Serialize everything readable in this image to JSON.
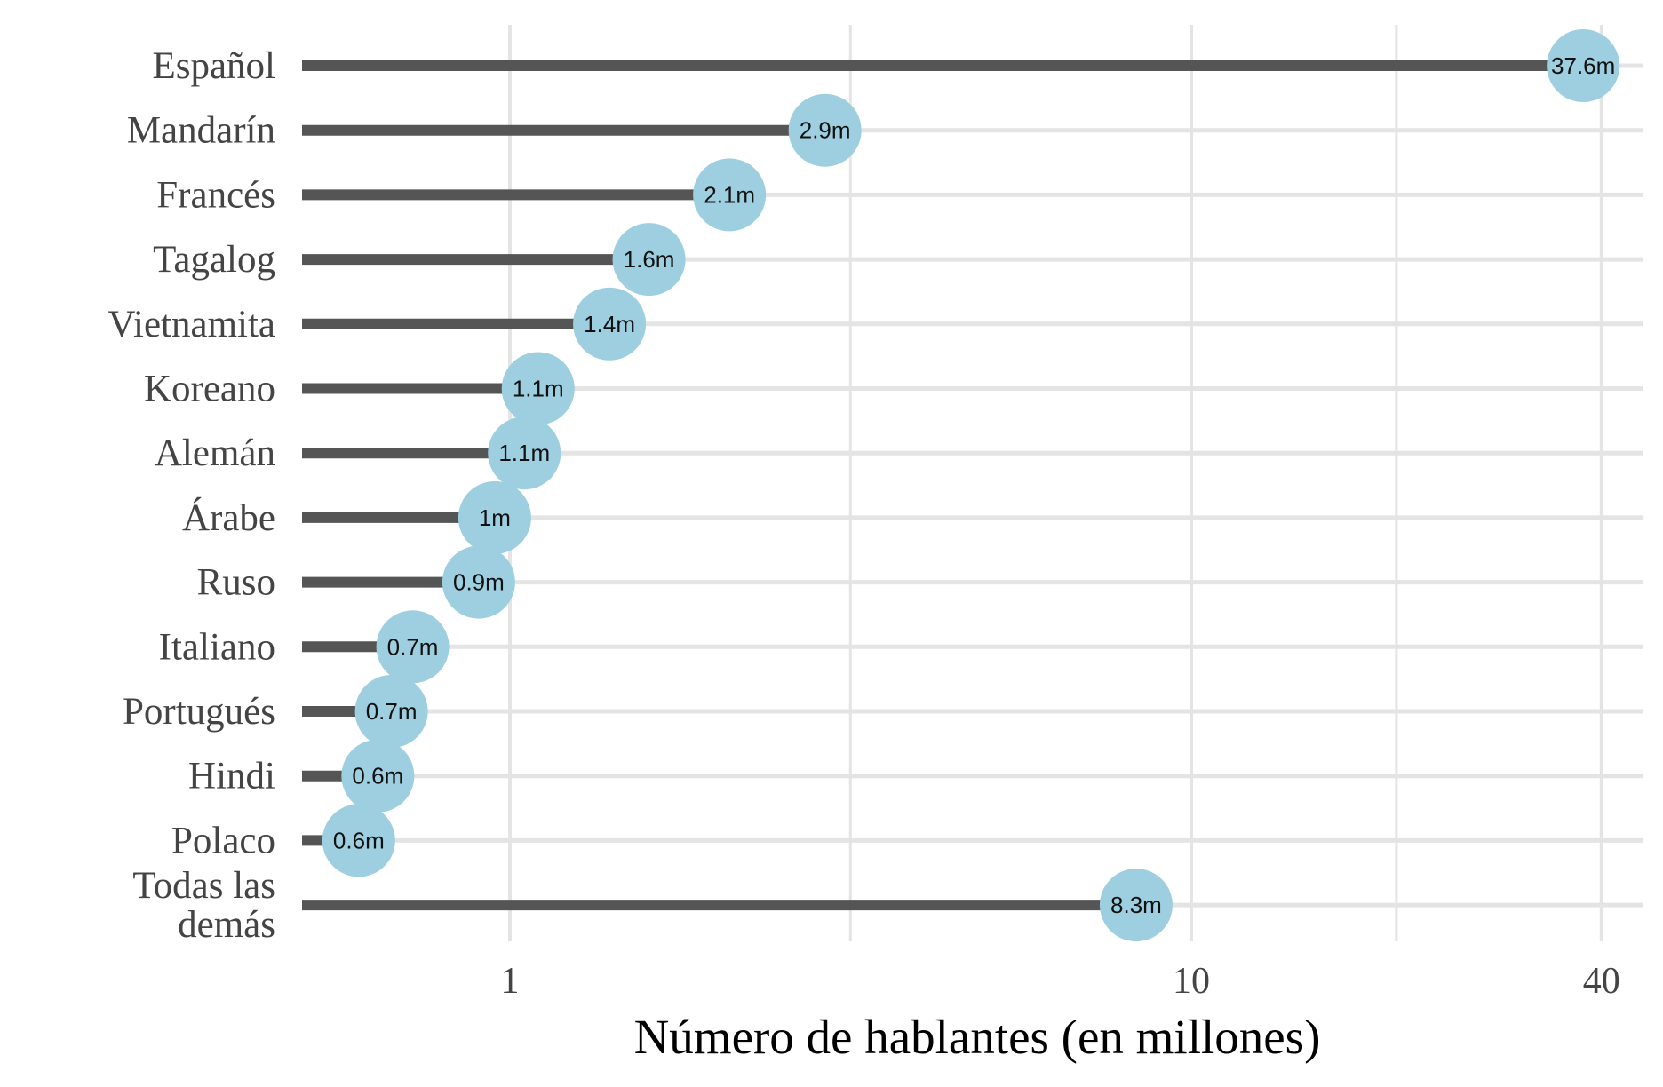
{
  "chart_data": {
    "type": "lollipop",
    "orientation": "horizontal",
    "x_scale": "log",
    "xlabel": "Número de hablantes (en millones)",
    "xlim": [
      0.3,
      52
    ],
    "x_ticks": [
      {
        "value": 1,
        "label": "1"
      },
      {
        "value": 10,
        "label": "10"
      },
      {
        "value": 40,
        "label": "40"
      }
    ],
    "minor_gridlines": [
      3.16,
      20
    ],
    "grid": true,
    "colors": {
      "stem": "#555555",
      "dot": "#9ecfe0",
      "grid": "#e4e4e4"
    },
    "categories": [
      {
        "label": [
          "Español"
        ],
        "value": 37.6,
        "data_label": "37.6m"
      },
      {
        "label": [
          "Mandarín"
        ],
        "value": 2.9,
        "data_label": "2.9m"
      },
      {
        "label": [
          "Francés"
        ],
        "value": 2.1,
        "data_label": "2.1m"
      },
      {
        "label": [
          "Tagalog"
        ],
        "value": 1.6,
        "data_label": "1.6m"
      },
      {
        "label": [
          "Vietnamita"
        ],
        "value": 1.4,
        "data_label": "1.4m"
      },
      {
        "label": [
          "Koreano"
        ],
        "value": 1.1,
        "data_label": "1.1m"
      },
      {
        "label": [
          "Alemán"
        ],
        "value": 1.05,
        "data_label": "1.1m"
      },
      {
        "label": [
          "Árabe"
        ],
        "value": 0.95,
        "data_label": "1m"
      },
      {
        "label": [
          "Ruso"
        ],
        "value": 0.9,
        "data_label": "0.9m"
      },
      {
        "label": [
          "Italiano"
        ],
        "value": 0.72,
        "data_label": "0.7m"
      },
      {
        "label": [
          "Portugués"
        ],
        "value": 0.67,
        "data_label": "0.7m"
      },
      {
        "label": [
          "Hindi"
        ],
        "value": 0.64,
        "data_label": "0.6m"
      },
      {
        "label": [
          "Polaco"
        ],
        "value": 0.6,
        "data_label": "0.6m"
      },
      {
        "label": [
          "Todas las",
          "demás"
        ],
        "value": 8.3,
        "data_label": "8.3m"
      }
    ]
  }
}
